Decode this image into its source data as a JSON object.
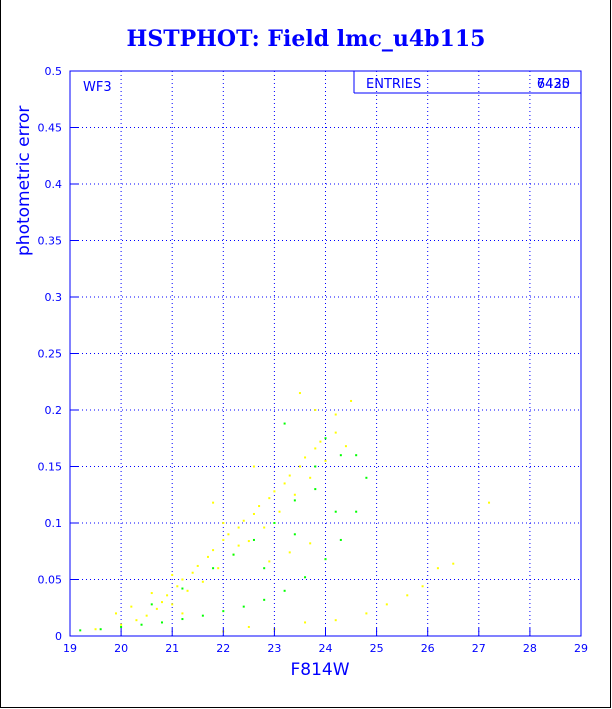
{
  "chart_data": {
    "type": "scatter",
    "title": "HSTPHOT: Field lmc_u4b115",
    "xlabel": "F814W",
    "ylabel": "photometric error",
    "xlim": [
      19,
      29
    ],
    "ylim": [
      0,
      0.5
    ],
    "x_ticks": [
      "19",
      "20",
      "21",
      "22",
      "23",
      "24",
      "25",
      "26",
      "27",
      "28",
      "29"
    ],
    "y_ticks": [
      "0",
      "0.05",
      "0.1",
      "0.15",
      "0.2",
      "0.25",
      "0.3",
      "0.35",
      "0.4",
      "0.45",
      "0.5"
    ],
    "grid": true,
    "panel_label": "WF3",
    "stats_box": {
      "label": "ENTRIES",
      "values": [
        "7435",
        "6420"
      ]
    },
    "series": [
      {
        "color": "#ffff00",
        "approx_count": 7435,
        "points": [
          [
            19.5,
            0.006
          ],
          [
            20.0,
            0.01
          ],
          [
            20.3,
            0.014
          ],
          [
            20.5,
            0.018
          ],
          [
            20.7,
            0.024
          ],
          [
            20.8,
            0.03
          ],
          [
            20.9,
            0.036
          ],
          [
            21.0,
            0.028
          ],
          [
            21.1,
            0.044
          ],
          [
            21.2,
            0.05
          ],
          [
            21.3,
            0.04
          ],
          [
            21.4,
            0.056
          ],
          [
            21.5,
            0.062
          ],
          [
            21.6,
            0.048
          ],
          [
            21.7,
            0.07
          ],
          [
            21.8,
            0.076
          ],
          [
            21.9,
            0.06
          ],
          [
            22.0,
            0.085
          ],
          [
            22.1,
            0.09
          ],
          [
            22.2,
            0.072
          ],
          [
            22.3,
            0.096
          ],
          [
            22.4,
            0.102
          ],
          [
            22.5,
            0.084
          ],
          [
            22.6,
            0.108
          ],
          [
            22.7,
            0.115
          ],
          [
            22.8,
            0.096
          ],
          [
            22.9,
            0.122
          ],
          [
            23.0,
            0.128
          ],
          [
            23.1,
            0.11
          ],
          [
            23.2,
            0.135
          ],
          [
            23.3,
            0.142
          ],
          [
            23.4,
            0.125
          ],
          [
            23.5,
            0.15
          ],
          [
            23.6,
            0.158
          ],
          [
            23.7,
            0.14
          ],
          [
            23.8,
            0.166
          ],
          [
            23.9,
            0.172
          ],
          [
            24.0,
            0.155
          ],
          [
            24.2,
            0.18
          ],
          [
            24.4,
            0.168
          ],
          [
            21.8,
            0.118
          ],
          [
            22.6,
            0.15
          ],
          [
            23.5,
            0.215
          ],
          [
            23.8,
            0.2
          ],
          [
            24.5,
            0.208
          ],
          [
            24.2,
            0.196
          ],
          [
            22.0,
            0.1
          ],
          [
            22.3,
            0.08
          ],
          [
            21.2,
            0.02
          ],
          [
            22.0,
            0.004
          ],
          [
            22.5,
            0.008
          ],
          [
            23.0,
            0.006
          ],
          [
            23.6,
            0.012
          ],
          [
            24.2,
            0.014
          ],
          [
            24.8,
            0.02
          ],
          [
            25.2,
            0.028
          ],
          [
            25.6,
            0.036
          ],
          [
            25.9,
            0.044
          ],
          [
            26.2,
            0.06
          ],
          [
            26.5,
            0.064
          ],
          [
            27.2,
            0.118
          ],
          [
            21.0,
            0.054
          ],
          [
            20.6,
            0.038
          ],
          [
            20.2,
            0.026
          ],
          [
            19.9,
            0.02
          ],
          [
            22.9,
            0.066
          ],
          [
            23.3,
            0.074
          ],
          [
            23.7,
            0.082
          ]
        ]
      },
      {
        "color": "#00ff00",
        "approx_count": 6420,
        "points": [
          [
            19.2,
            0.005
          ],
          [
            19.6,
            0.006
          ],
          [
            20.0,
            0.008
          ],
          [
            20.4,
            0.01
          ],
          [
            20.8,
            0.012
          ],
          [
            21.2,
            0.015
          ],
          [
            21.6,
            0.018
          ],
          [
            22.0,
            0.022
          ],
          [
            22.4,
            0.026
          ],
          [
            22.8,
            0.032
          ],
          [
            23.2,
            0.04
          ],
          [
            23.6,
            0.052
          ],
          [
            24.0,
            0.068
          ],
          [
            24.3,
            0.085
          ],
          [
            24.6,
            0.11
          ],
          [
            24.8,
            0.14
          ],
          [
            20.6,
            0.028
          ],
          [
            21.2,
            0.042
          ],
          [
            21.8,
            0.06
          ],
          [
            22.2,
            0.072
          ],
          [
            22.6,
            0.085
          ],
          [
            23.0,
            0.1
          ],
          [
            23.4,
            0.12
          ],
          [
            23.8,
            0.15
          ],
          [
            24.0,
            0.175
          ],
          [
            24.3,
            0.16
          ],
          [
            24.6,
            0.16
          ],
          [
            23.2,
            0.188
          ],
          [
            23.8,
            0.13
          ],
          [
            22.8,
            0.06
          ],
          [
            23.4,
            0.09
          ],
          [
            24.2,
            0.11
          ]
        ]
      }
    ]
  }
}
